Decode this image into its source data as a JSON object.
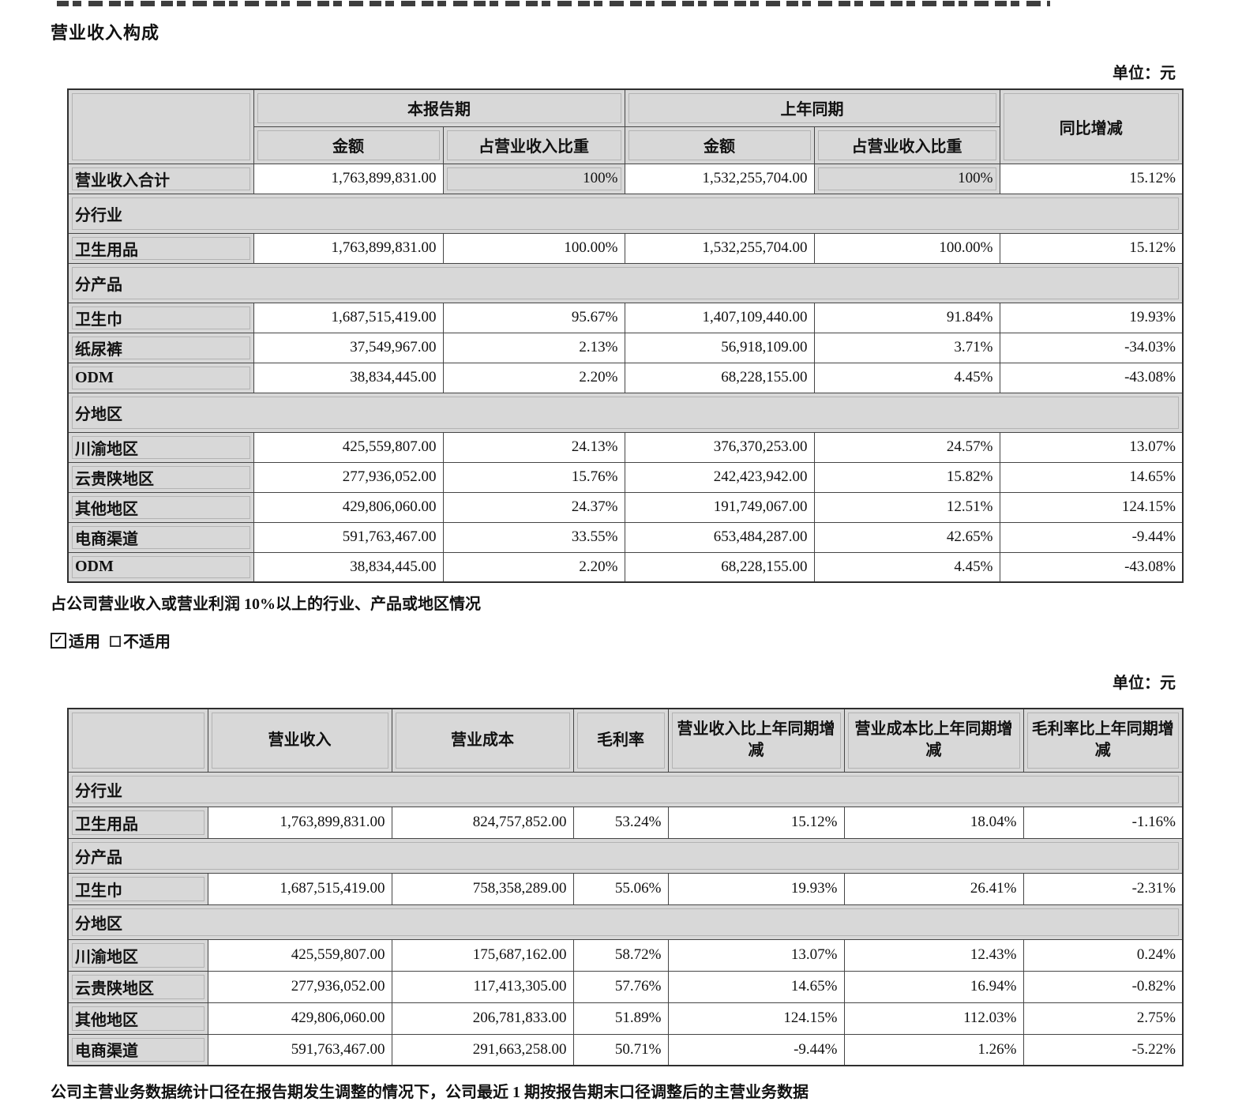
{
  "page": {
    "title": "营业收入构成",
    "unit_label_1": "单位：元",
    "unit_label_2": "单位：元",
    "threshold_note": "占公司营业收入或营业利润 10%以上的行业、产品或地区情况",
    "applicability": {
      "check_symbol": "✓",
      "applicable_label": "适用",
      "not_applicable_label": "不适用"
    },
    "footer_note": "公司主营业务数据统计口径在报告期发生调整的情况下，公司最近 1 期按报告期末口径调整后的主营业务数据"
  },
  "revenue_table": {
    "header": {
      "current_period": "本报告期",
      "prior_period": "上年同期",
      "yoy_change": "同比增减",
      "amount": "金额",
      "share": "占营业收入比重"
    },
    "rows": [
      {
        "type": "total",
        "label": "营业收入合计",
        "values": [
          "1,763,899,831.00",
          "100%",
          "1,532,255,704.00",
          "100%",
          "15.12%"
        ]
      },
      {
        "type": "section",
        "label": "分行业"
      },
      {
        "type": "data",
        "label": "卫生用品",
        "values": [
          "1,763,899,831.00",
          "100.00%",
          "1,532,255,704.00",
          "100.00%",
          "15.12%"
        ]
      },
      {
        "type": "section",
        "label": "分产品"
      },
      {
        "type": "data",
        "label": "卫生巾",
        "values": [
          "1,687,515,419.00",
          "95.67%",
          "1,407,109,440.00",
          "91.84%",
          "19.93%"
        ]
      },
      {
        "type": "data",
        "label": "纸尿裤",
        "values": [
          "37,549,967.00",
          "2.13%",
          "56,918,109.00",
          "3.71%",
          "-34.03%"
        ]
      },
      {
        "type": "data",
        "label": "ODM",
        "values": [
          "38,834,445.00",
          "2.20%",
          "68,228,155.00",
          "4.45%",
          "-43.08%"
        ]
      },
      {
        "type": "section",
        "label": "分地区"
      },
      {
        "type": "data",
        "label": "川渝地区",
        "values": [
          "425,559,807.00",
          "24.13%",
          "376,370,253.00",
          "24.57%",
          "13.07%"
        ]
      },
      {
        "type": "data",
        "label": "云贵陕地区",
        "values": [
          "277,936,052.00",
          "15.76%",
          "242,423,942.00",
          "15.82%",
          "14.65%"
        ]
      },
      {
        "type": "data",
        "label": "其他地区",
        "values": [
          "429,806,060.00",
          "24.37%",
          "191,749,067.00",
          "12.51%",
          "124.15%"
        ]
      },
      {
        "type": "data",
        "label": "电商渠道",
        "values": [
          "591,763,467.00",
          "33.55%",
          "653,484,287.00",
          "42.65%",
          "-9.44%"
        ]
      },
      {
        "type": "data",
        "label": "ODM",
        "values": [
          "38,834,445.00",
          "2.20%",
          "68,228,155.00",
          "4.45%",
          "-43.08%"
        ]
      }
    ]
  },
  "margin_table": {
    "headers": [
      "",
      "营业收入",
      "营业成本",
      "毛利率",
      "营业收入比上年同期增减",
      "营业成本比上年同期增减",
      "毛利率比上年同期增减"
    ],
    "rows": [
      {
        "type": "section",
        "label": "分行业"
      },
      {
        "type": "data",
        "label": "卫生用品",
        "values": [
          "1,763,899,831.00",
          "824,757,852.00",
          "53.24%",
          "15.12%",
          "18.04%",
          "-1.16%"
        ]
      },
      {
        "type": "section",
        "label": "分产品"
      },
      {
        "type": "data",
        "label": "卫生巾",
        "values": [
          "1,687,515,419.00",
          "758,358,289.00",
          "55.06%",
          "19.93%",
          "26.41%",
          "-2.31%"
        ]
      },
      {
        "type": "section",
        "label": "分地区"
      },
      {
        "type": "data",
        "label": "川渝地区",
        "values": [
          "425,559,807.00",
          "175,687,162.00",
          "58.72%",
          "13.07%",
          "12.43%",
          "0.24%"
        ]
      },
      {
        "type": "data",
        "label": "云贵陕地区",
        "values": [
          "277,936,052.00",
          "117,413,305.00",
          "57.76%",
          "14.65%",
          "16.94%",
          "-0.82%"
        ]
      },
      {
        "type": "data",
        "label": "其他地区",
        "values": [
          "429,806,060.00",
          "206,781,833.00",
          "51.89%",
          "124.15%",
          "112.03%",
          "2.75%"
        ]
      },
      {
        "type": "data",
        "label": "电商渠道",
        "values": [
          "591,763,467.00",
          "291,663,258.00",
          "50.71%",
          "-9.44%",
          "1.26%",
          "-5.22%"
        ]
      }
    ]
  }
}
